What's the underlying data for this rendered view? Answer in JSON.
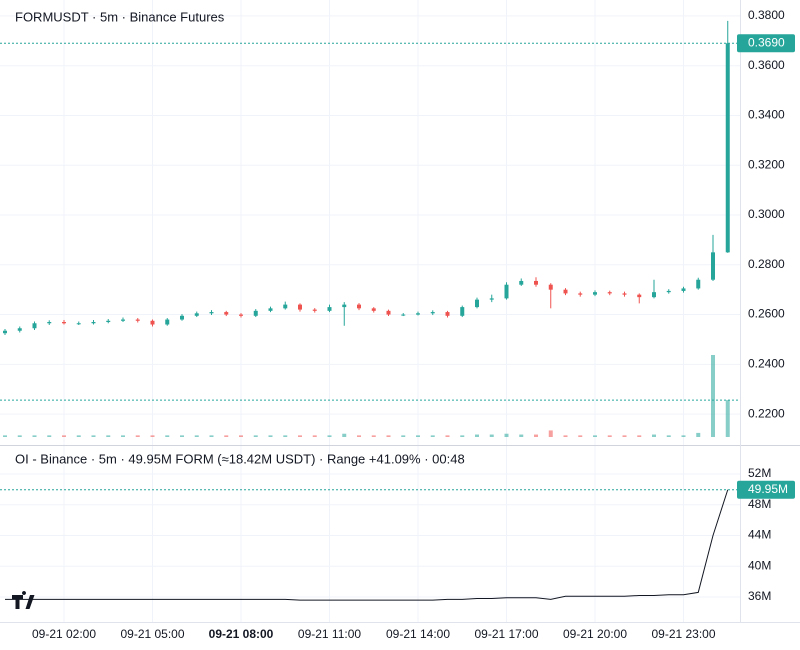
{
  "chart_data": [
    {
      "type": "candlestick",
      "title": "FORMUSDT · 5m · Binance Futures",
      "categories": [
        null,
        null,
        null,
        null,
        "09-21 02:00",
        null,
        null,
        null,
        null,
        null,
        "09-21 05:00",
        null,
        null,
        null,
        null,
        null,
        "09-21 08:00",
        null,
        null,
        null,
        null,
        null,
        "09-21 11:00",
        null,
        null,
        null,
        null,
        null,
        "09-21 14:00",
        null,
        null,
        null,
        null,
        null,
        "09-21 17:00",
        null,
        null,
        null,
        null,
        null,
        "09-21 20:00",
        null,
        null,
        null,
        null,
        null,
        "09-21 23:00",
        null,
        null,
        null
      ],
      "open": [
        0.2525,
        0.2535,
        0.2545,
        0.2565,
        0.257,
        0.2565,
        0.2565,
        0.257,
        0.2575,
        0.258,
        0.2575,
        0.256,
        0.258,
        0.2595,
        0.2605,
        0.261,
        0.26,
        0.2595,
        0.2615,
        0.2625,
        0.264,
        0.262,
        0.2615,
        0.263,
        0.264,
        0.2625,
        0.2615,
        0.26,
        0.26,
        0.2605,
        0.261,
        0.2595,
        0.263,
        0.266,
        0.2665,
        0.272,
        0.2735,
        0.272,
        0.27,
        0.2685,
        0.268,
        0.269,
        0.2685,
        0.268,
        0.267,
        0.269,
        0.2695,
        0.2705,
        0.274,
        0.285
      ],
      "high": [
        0.2542,
        0.2552,
        0.2572,
        0.2577,
        0.2578,
        0.2572,
        0.2578,
        0.2582,
        0.2588,
        0.2586,
        0.258,
        0.2586,
        0.2602,
        0.2612,
        0.2618,
        0.2615,
        0.2606,
        0.2622,
        0.2632,
        0.2652,
        0.2645,
        0.2626,
        0.264,
        0.265,
        0.2646,
        0.263,
        0.262,
        0.2606,
        0.2612,
        0.2617,
        0.2615,
        0.2636,
        0.2668,
        0.268,
        0.273,
        0.2745,
        0.275,
        0.2726,
        0.2706,
        0.2692,
        0.2697,
        0.2696,
        0.2692,
        0.2685,
        0.274,
        0.2702,
        0.2712,
        0.2748,
        0.292,
        0.378
      ],
      "low": [
        0.2518,
        0.2528,
        0.2538,
        0.2558,
        0.256,
        0.2558,
        0.256,
        0.2565,
        0.257,
        0.2568,
        0.2552,
        0.2555,
        0.2575,
        0.259,
        0.2598,
        0.2594,
        0.2588,
        0.259,
        0.261,
        0.262,
        0.2612,
        0.2608,
        0.261,
        0.2555,
        0.2618,
        0.2608,
        0.2594,
        0.2594,
        0.2596,
        0.2598,
        0.2588,
        0.259,
        0.2625,
        0.265,
        0.266,
        0.2715,
        0.2712,
        0.2625,
        0.2678,
        0.2672,
        0.2674,
        0.2678,
        0.2672,
        0.2645,
        0.2665,
        0.2684,
        0.2688,
        0.27,
        0.2735,
        0.2848
      ],
      "close": [
        0.2535,
        0.2545,
        0.2565,
        0.257,
        0.2565,
        0.2565,
        0.257,
        0.2575,
        0.258,
        0.2575,
        0.256,
        0.258,
        0.2595,
        0.2605,
        0.261,
        0.26,
        0.2595,
        0.2615,
        0.2625,
        0.264,
        0.262,
        0.2615,
        0.263,
        0.264,
        0.2625,
        0.2615,
        0.26,
        0.26,
        0.2605,
        0.261,
        0.2595,
        0.263,
        0.266,
        0.2665,
        0.272,
        0.2735,
        0.272,
        0.27,
        0.2685,
        0.268,
        0.269,
        0.2685,
        0.268,
        0.267,
        0.269,
        0.2695,
        0.2705,
        0.274,
        0.285,
        0.369
      ],
      "volume": [
        2,
        2,
        2,
        2,
        2,
        2,
        2,
        2,
        2,
        2,
        2,
        2,
        2,
        2,
        2,
        2,
        2,
        2,
        2,
        2,
        2,
        2,
        2,
        4,
        2,
        2,
        2,
        2,
        2,
        2,
        2,
        2,
        3,
        3,
        4,
        3,
        3,
        8,
        2,
        2,
        2,
        2,
        2,
        2,
        3,
        2,
        2,
        5,
        100,
        45
      ],
      "up_color": "#26a69a",
      "down_color": "#ef5350",
      "ylim": [
        0.2108,
        0.3864
      ],
      "yticks": [
        {
          "value": 0.22,
          "label": "0.2200"
        },
        {
          "value": 0.24,
          "label": "0.2400"
        },
        {
          "value": 0.26,
          "label": "0.2600"
        },
        {
          "value": 0.28,
          "label": "0.2800"
        },
        {
          "value": 0.3,
          "label": "0.3000"
        },
        {
          "value": 0.32,
          "label": "0.3200"
        },
        {
          "value": 0.34,
          "label": "0.3400"
        },
        {
          "value": 0.36,
          "label": "0.3600"
        },
        {
          "value": 0.38,
          "label": "0.3800"
        }
      ],
      "last_value": {
        "value": 0.369,
        "label": "0.3690"
      },
      "grid": true
    },
    {
      "type": "line",
      "title": "OI - Binance · 5m · 49.95M FORM (≈18.42M USDT) · Range +41.09% · 00:48",
      "values": [
        35.7,
        35.7,
        35.7,
        35.7,
        35.7,
        35.7,
        35.7,
        35.7,
        35.7,
        35.7,
        35.7,
        35.7,
        35.7,
        35.7,
        35.7,
        35.7,
        35.7,
        35.7,
        35.7,
        35.7,
        35.6,
        35.6,
        35.6,
        35.6,
        35.6,
        35.6,
        35.6,
        35.6,
        35.6,
        35.6,
        35.7,
        35.7,
        35.8,
        35.8,
        35.9,
        35.9,
        35.9,
        35.7,
        36.1,
        36.1,
        36.1,
        36.1,
        36.1,
        36.2,
        36.2,
        36.3,
        36.3,
        36.6,
        44.0,
        49.95
      ],
      "color": "#131722",
      "ylim": [
        32.75,
        55.64
      ],
      "yticks": [
        {
          "value": 36,
          "label": "36M"
        },
        {
          "value": 40,
          "label": "40M"
        },
        {
          "value": 44,
          "label": "44M"
        },
        {
          "value": 48,
          "label": "48M"
        },
        {
          "value": 52,
          "label": "52M"
        }
      ],
      "last_value": {
        "value": 49.95,
        "label": "49.95M"
      },
      "label_color": "#26a69a",
      "grid": true
    }
  ]
}
